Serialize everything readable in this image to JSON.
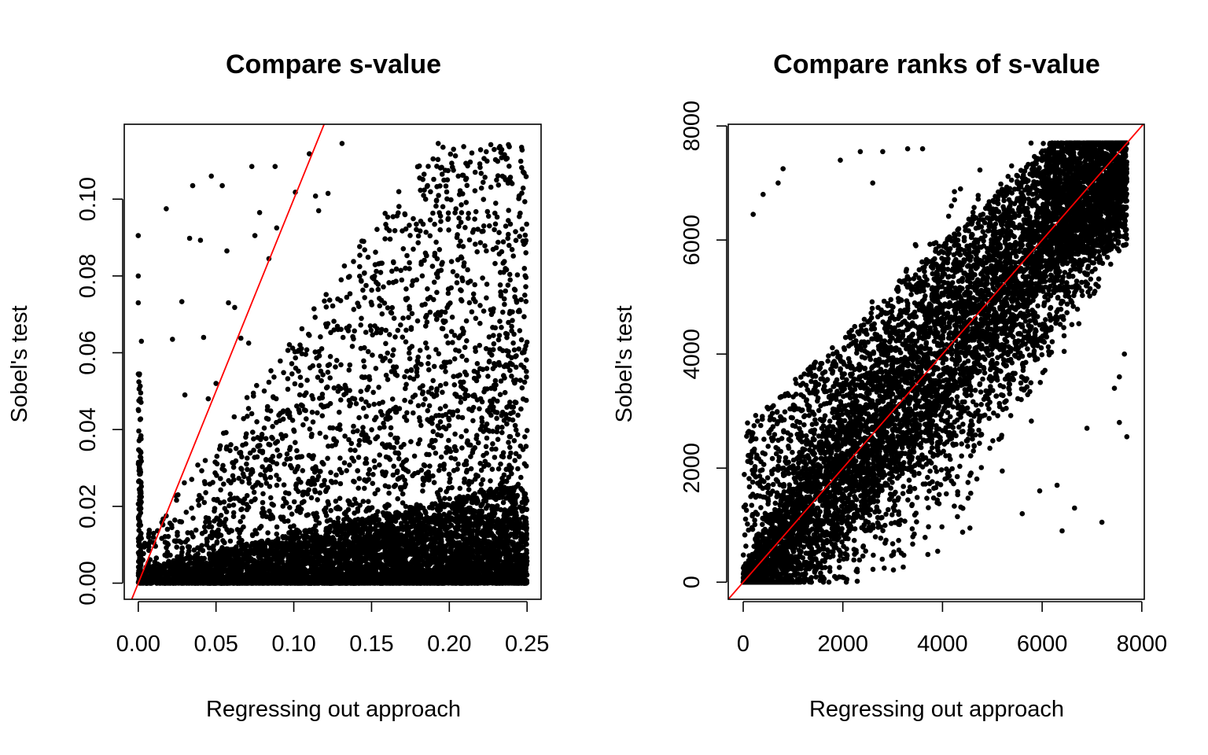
{
  "colors": {
    "points": "#000000",
    "reference_line": "#ff0000",
    "background": "#ffffff"
  },
  "chart_data": [
    {
      "type": "scatter",
      "title": "Compare s-value",
      "xlabel": "Regressing out approach",
      "ylabel": "Sobel's test",
      "xlim": [
        -0.009,
        0.259
      ],
      "ylim": [
        -0.0042,
        0.1195
      ],
      "xticks": [
        0,
        0.05,
        0.1,
        0.15,
        0.2,
        0.25
      ],
      "xtick_labels": [
        "0.00",
        "0.05",
        "0.10",
        "0.15",
        "0.20",
        "0.25"
      ],
      "yticks": [
        0,
        0.02,
        0.04,
        0.06,
        0.08,
        0.1
      ],
      "ytick_labels": [
        "0.00",
        "0.02",
        "0.04",
        "0.06",
        "0.08",
        "0.10"
      ],
      "grid": false,
      "reference_line": {
        "type": "line",
        "intercept": 0,
        "slope": 1
      },
      "point_cloud": {
        "n": 7700,
        "x_range": [
          0,
          0.25
        ],
        "y_range": [
          0,
          0.115
        ],
        "description": "dense mass near y=0 across all x; spread upward increasing with x; most points below the red line"
      },
      "points": [
        [
          0.0,
          0.0905
        ],
        [
          0.0,
          0.08
        ],
        [
          0.0,
          0.073
        ],
        [
          0.002,
          0.063
        ],
        [
          0.018,
          0.0975
        ],
        [
          0.035,
          0.1035
        ],
        [
          0.047,
          0.106
        ],
        [
          0.054,
          0.1035
        ],
        [
          0.073,
          0.1085
        ],
        [
          0.088,
          0.1085
        ],
        [
          0.033,
          0.0898
        ],
        [
          0.04,
          0.0893
        ],
        [
          0.057,
          0.0865
        ],
        [
          0.078,
          0.0965
        ],
        [
          0.075,
          0.0905
        ],
        [
          0.084,
          0.0845
        ],
        [
          0.089,
          0.0925
        ],
        [
          0.101,
          0.1018
        ],
        [
          0.11,
          0.1118
        ],
        [
          0.114,
          0.1008
        ],
        [
          0.028,
          0.0733
        ],
        [
          0.058,
          0.073
        ],
        [
          0.062,
          0.0718
        ],
        [
          0.022,
          0.0635
        ],
        [
          0.042,
          0.064
        ],
        [
          0.066,
          0.0638
        ],
        [
          0.071,
          0.0625
        ],
        [
          0.03,
          0.049
        ],
        [
          0.045,
          0.048
        ],
        [
          0.05,
          0.052
        ],
        [
          0.116,
          0.097
        ],
        [
          0.122,
          0.1015
        ],
        [
          0.131,
          0.1145
        ],
        [
          0.201,
          0.001
        ],
        [
          0.23,
          0.0045
        ],
        [
          0.248,
          0.003
        ],
        [
          0.244,
          0.008
        ],
        [
          0.185,
          0.0005
        ],
        [
          0.24,
          0.03
        ],
        [
          0.215,
          0.015
        ]
      ]
    },
    {
      "type": "scatter",
      "title": "Compare ranks of s-value",
      "xlabel": "Regressing out approach",
      "ylabel": "Sobel's test",
      "xlim": [
        -300,
        8050
      ],
      "ylim": [
        -300,
        8030
      ],
      "xticks": [
        0,
        2000,
        4000,
        6000,
        8000
      ],
      "xtick_labels": [
        "0",
        "2000",
        "4000",
        "6000",
        "8000"
      ],
      "yticks": [
        0,
        2000,
        4000,
        6000,
        8000
      ],
      "ytick_labels": [
        "0",
        "2000",
        "4000",
        "6000",
        "8000"
      ],
      "grid": false,
      "reference_line": {
        "type": "line",
        "intercept": 0,
        "slope": 1
      },
      "point_cloud": {
        "n": 7700,
        "x_range": [
          0,
          7700
        ],
        "y_range": [
          0,
          7700
        ],
        "description": "rank vs rank; points scattered around the diagonal, dense near the line and in the upper-right corner"
      },
      "points": [
        [
          800,
          7250
        ],
        [
          1950,
          7400
        ],
        [
          2350,
          7550
        ],
        [
          2800,
          7550
        ],
        [
          3300,
          7600
        ],
        [
          3600,
          7600
        ],
        [
          400,
          6800
        ],
        [
          700,
          7000
        ],
        [
          200,
          6450
        ],
        [
          2600,
          7000
        ],
        [
          7200,
          1050
        ],
        [
          6400,
          900
        ],
        [
          6650,
          1300
        ],
        [
          5600,
          1200
        ],
        [
          4550,
          950
        ],
        [
          7700,
          2550
        ],
        [
          7550,
          2800
        ],
        [
          7450,
          3400
        ],
        [
          6900,
          2700
        ],
        [
          7550,
          3600
        ],
        [
          7650,
          4000
        ],
        [
          6300,
          1700
        ],
        [
          5950,
          1600
        ],
        [
          5200,
          1950
        ],
        [
          4300,
          1150
        ]
      ]
    }
  ]
}
